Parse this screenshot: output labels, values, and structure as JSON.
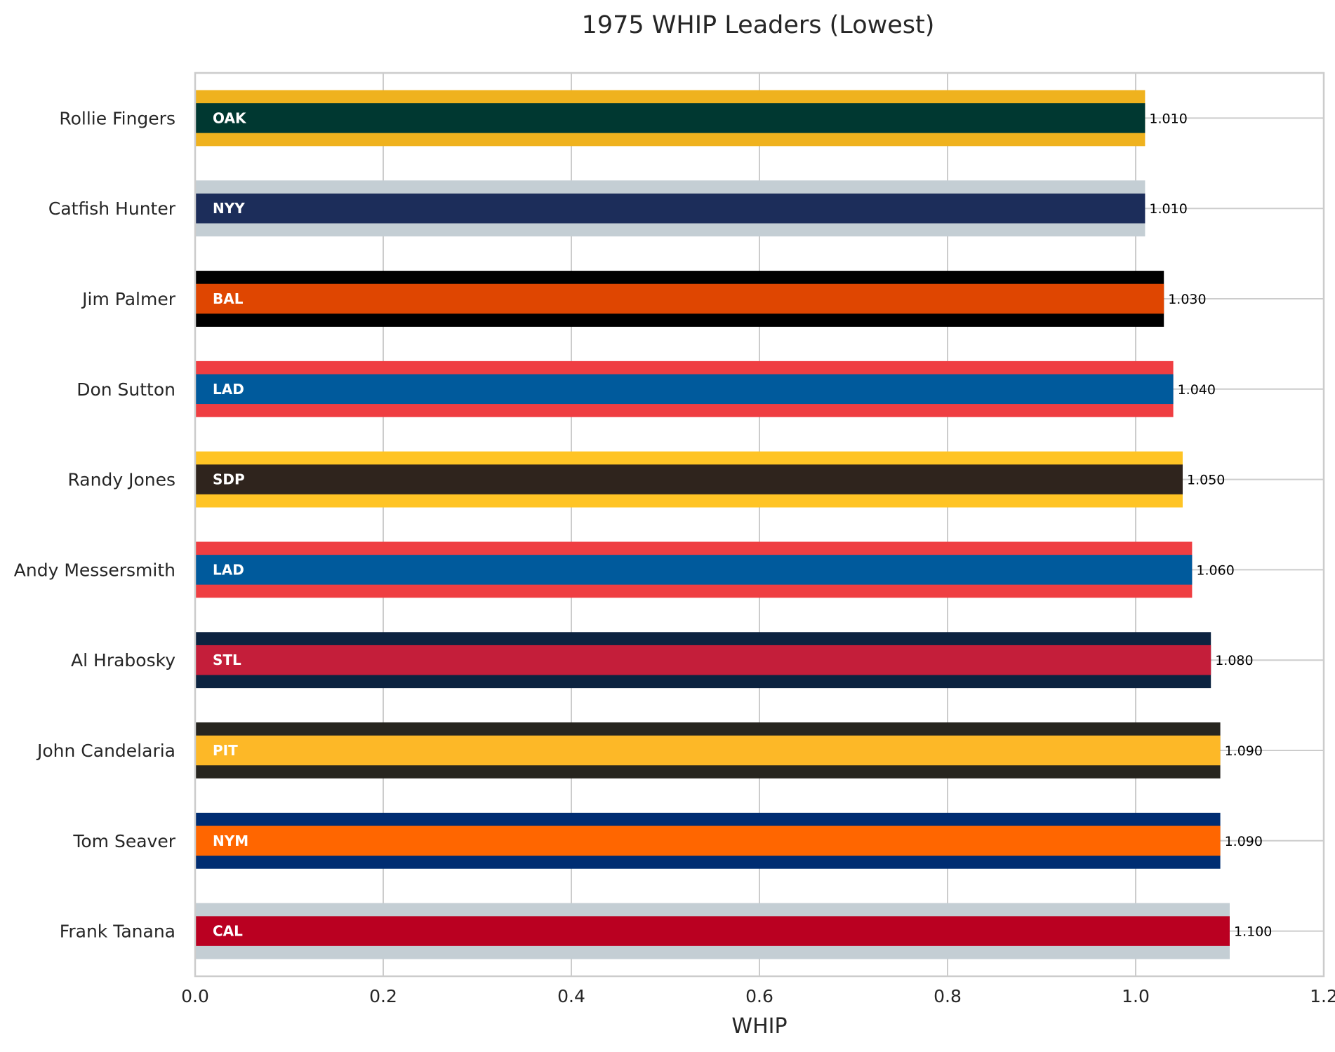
{
  "chart_data": {
    "type": "bar",
    "orientation": "horizontal",
    "title": "1975 WHIP Leaders (Lowest)",
    "xlabel": "WHIP",
    "ylabel": "",
    "xlim": [
      0,
      1.2
    ],
    "xticks": [
      "0.0",
      "0.2",
      "0.4",
      "0.6",
      "0.8",
      "1.0",
      "1.2"
    ],
    "grid": true,
    "categories": [
      "Rollie Fingers",
      "Catfish Hunter",
      "Jim Palmer",
      "Don Sutton",
      "Randy Jones",
      "Andy Messersmith",
      "Al Hrabosky",
      "John Candelaria",
      "Tom Seaver",
      "Frank Tanana"
    ],
    "values": [
      1.01,
      1.01,
      1.03,
      1.04,
      1.05,
      1.06,
      1.08,
      1.09,
      1.09,
      1.1
    ],
    "value_labels": [
      "1.010",
      "1.010",
      "1.030",
      "1.040",
      "1.050",
      "1.060",
      "1.080",
      "1.090",
      "1.090",
      "1.100"
    ],
    "teams": [
      "OAK",
      "NYY",
      "BAL",
      "LAD",
      "SDP",
      "LAD",
      "STL",
      "PIT",
      "NYM",
      "CAL"
    ],
    "primary_colors": [
      "#003831",
      "#1C2D5A",
      "#DF4601",
      "#005A9C",
      "#2F241D",
      "#005A9C",
      "#C41E3A",
      "#FDB827",
      "#FF6600",
      "#BA0021"
    ],
    "secondary_colors": [
      "#EFB21E",
      "#C4CED4",
      "#000000",
      "#EF3E42",
      "#FFC425",
      "#EF3E42",
      "#0C2340",
      "#27251F",
      "#002D72",
      "#C4CED4"
    ]
  }
}
